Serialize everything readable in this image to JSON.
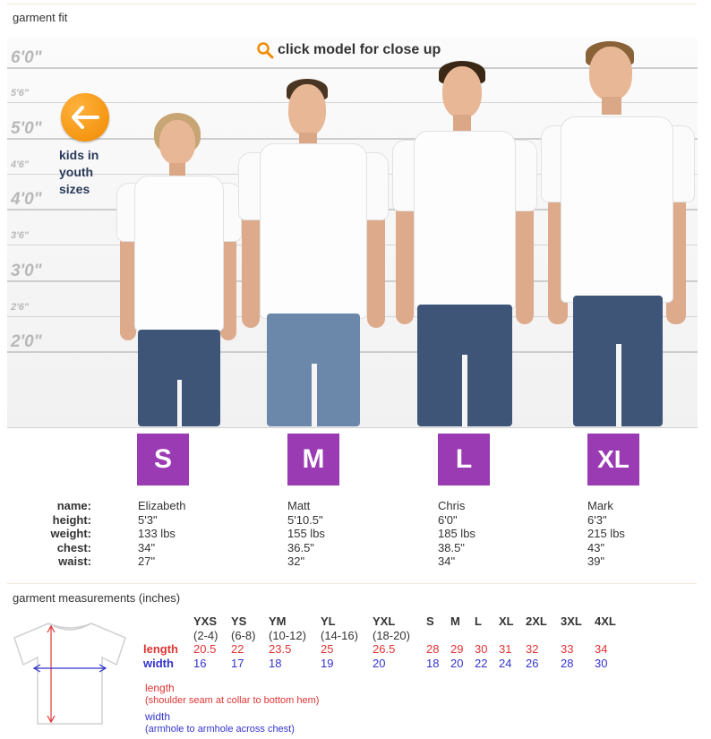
{
  "section_titles": {
    "fit": "garment fit",
    "measurements": "garment measurements (inches)"
  },
  "height_labels": {
    "major": [
      "6'0\"",
      "5'0\"",
      "4'0\"",
      "3'0\"",
      "2'0\""
    ],
    "minor": [
      "5'6\"",
      "4'6\"",
      "3'6\"",
      "2'6\""
    ]
  },
  "closeup_text": "click model for close up",
  "kids": {
    "label": "kids in youth sizes",
    "icon": "arrow-left-icon",
    "color": "#f39200"
  },
  "info_labels": [
    "name:",
    "height:",
    "weight:",
    "chest:",
    "waist:"
  ],
  "models": [
    {
      "size": "S",
      "name": "Elizabeth",
      "height": "5'3\"",
      "weight": "133 lbs",
      "chest": "34\"",
      "waist": "27\""
    },
    {
      "size": "M",
      "name": "Matt",
      "height": "5'10.5\"",
      "weight": "155 lbs",
      "chest": "36.5\"",
      "waist": "32\""
    },
    {
      "size": "L",
      "name": "Chris",
      "height": "6'0\"",
      "weight": "185 lbs",
      "chest": "38.5\"",
      "waist": "34\""
    },
    {
      "size": "XL",
      "name": "Mark",
      "height": "6'3\"",
      "weight": "215 lbs",
      "chest": "43\"",
      "waist": "39\""
    }
  ],
  "badge_color": "#9b3bb4",
  "measurements": {
    "sizes": [
      "YXS",
      "YS",
      "YM",
      "YL",
      "YXL",
      "S",
      "M",
      "L",
      "XL",
      "2XL",
      "3XL",
      "4XL"
    ],
    "youth_ranges": [
      "(2-4)",
      "(6-8)",
      "(10-12)",
      "(14-16)",
      "(18-20)"
    ],
    "length_label": "length",
    "width_label": "width",
    "length": [
      "20.5",
      "22",
      "23.5",
      "25",
      "26.5",
      "28",
      "29",
      "30",
      "31",
      "32",
      "33",
      "34"
    ],
    "width": [
      "16",
      "17",
      "18",
      "19",
      "20",
      "18",
      "20",
      "22",
      "24",
      "26",
      "28",
      "30"
    ],
    "length_note_title": "length",
    "length_note": "(shoulder seam at collar to bottom hem)",
    "width_note_title": "width",
    "width_note": "(armhole to armhole across chest)",
    "length_color": "#e03434",
    "width_color": "#3333cc"
  }
}
